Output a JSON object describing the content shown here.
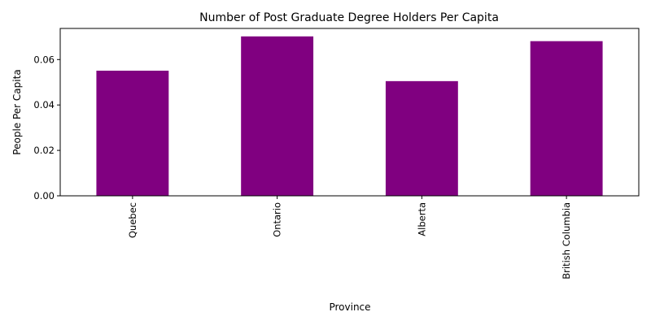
{
  "chart_data": {
    "type": "bar",
    "title": "Number of Post Graduate Degree Holders Per Capita",
    "xlabel": "Province",
    "ylabel": "People Per Capita",
    "categories": [
      "Quebec",
      "Ontario",
      "Alberta",
      "British Columbia"
    ],
    "values": [
      0.0551,
      0.0702,
      0.0505,
      0.0681
    ],
    "ylim": [
      0,
      0.0737
    ],
    "yticks": [
      0.0,
      0.02,
      0.04,
      0.06
    ],
    "ytick_labels": [
      "0.00",
      "0.02",
      "0.04",
      "0.06"
    ],
    "bar_color": "#800080",
    "grid": false,
    "legend": false
  }
}
